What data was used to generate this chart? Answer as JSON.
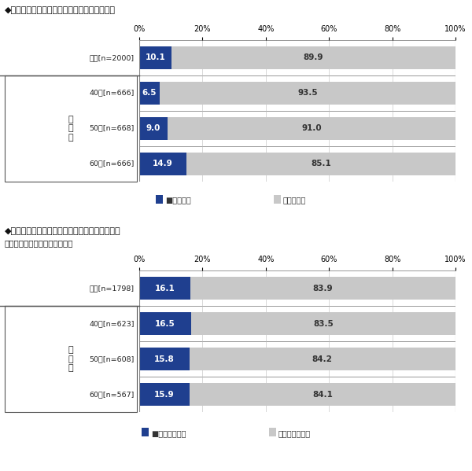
{
  "chart1": {
    "title": "◆相続対策を既にしているか（単一回答形式）",
    "subtitle": "",
    "categories": [
      "全体[n=2000]",
      "40代[n=666]",
      "50代[n=668]",
      "60代[n=666]"
    ],
    "values_yes": [
      10.1,
      6.5,
      9.0,
      14.9
    ],
    "values_no": [
      89.9,
      93.5,
      91.0,
      85.1
    ],
    "legend_yes": "■している",
    "legend_no": "していない",
    "color_yes": "#1F3F8F",
    "color_no": "#C8C8C8",
    "age_label": "年\n代\n別"
  },
  "chart2": {
    "title": "◆争族に降ると心配しているか（単一回答形式）",
    "subtitle": "対象：相続対策をしていない人",
    "categories": [
      "全体[n=1798]",
      "40代[n=623]",
      "50代[n=608]",
      "60代[n=567]"
    ],
    "values_yes": [
      16.1,
      16.5,
      15.8,
      15.9
    ],
    "values_no": [
      83.9,
      83.5,
      84.2,
      84.1
    ],
    "legend_yes": "■心配している",
    "legend_no": "心配していない",
    "color_yes": "#1F3F8F",
    "color_no": "#C8C8C8",
    "age_label": "年\n代\n別"
  },
  "xticks": [
    0,
    20,
    40,
    60,
    80,
    100
  ],
  "xticklabels": [
    "0%",
    "20%",
    "40%",
    "60%",
    "80%",
    "100%"
  ],
  "bar_height": 0.65,
  "background_color": "#FFFFFF"
}
